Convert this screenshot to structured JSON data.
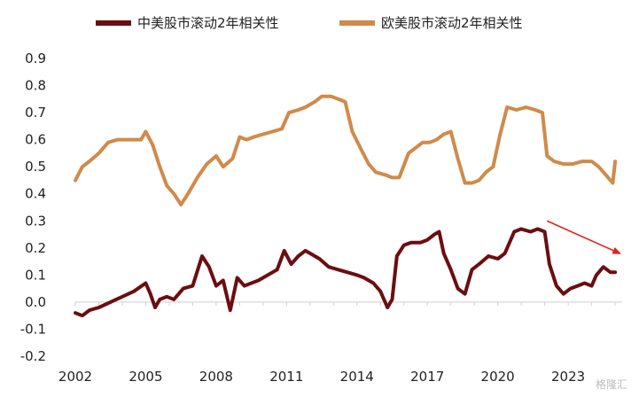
{
  "chart_data": {
    "type": "line",
    "xlim": [
      2002,
      2025.3
    ],
    "ylim": [
      -0.2,
      0.9
    ],
    "yticks": [
      0.9,
      0.8,
      0.7,
      0.6,
      0.5,
      0.4,
      0.3,
      0.2,
      0.1,
      0.0,
      -0.1,
      -0.2
    ],
    "ytick_labels": [
      "0.9",
      "0.8",
      "0.7",
      "0.6",
      "0.5",
      "0.4",
      "0.3",
      "0.2",
      "0.1",
      "0.0",
      "-0.1",
      "-0.2"
    ],
    "xticks": [
      "2002",
      "2005",
      "2008",
      "2011",
      "2014",
      "2017",
      "2020",
      "2023"
    ],
    "legend_position": "top",
    "grid": false,
    "series": [
      {
        "name": "中美股市滚动2年相关性",
        "color": "#6b0e10",
        "x": [
          2002.0,
          2002.3,
          2002.6,
          2003.0,
          2003.5,
          2004.0,
          2004.5,
          2005.0,
          2005.2,
          2005.4,
          2005.6,
          2005.9,
          2006.2,
          2006.6,
          2007.0,
          2007.4,
          2007.7,
          2008.0,
          2008.3,
          2008.6,
          2008.9,
          2009.2,
          2009.5,
          2009.8,
          2010.2,
          2010.6,
          2010.9,
          2011.2,
          2011.5,
          2011.8,
          2012.0,
          2012.4,
          2012.8,
          2013.2,
          2013.6,
          2014.0,
          2014.3,
          2014.7,
          2015.0,
          2015.3,
          2015.5,
          2015.7,
          2016.0,
          2016.3,
          2016.7,
          2017.0,
          2017.3,
          2017.5,
          2017.7,
          2018.0,
          2018.3,
          2018.6,
          2018.9,
          2019.2,
          2019.6,
          2020.0,
          2020.3,
          2020.7,
          2021.0,
          2021.4,
          2021.7,
          2022.0,
          2022.2,
          2022.5,
          2022.8,
          2023.1,
          2023.4,
          2023.7,
          2024.0,
          2024.2,
          2024.5,
          2024.8,
          2025.0
        ],
        "values": [
          -0.04,
          -0.05,
          -0.03,
          -0.02,
          0.0,
          0.02,
          0.04,
          0.07,
          0.03,
          -0.02,
          0.01,
          0.02,
          0.01,
          0.05,
          0.06,
          0.17,
          0.13,
          0.06,
          0.08,
          -0.03,
          0.09,
          0.06,
          0.07,
          0.08,
          0.1,
          0.12,
          0.19,
          0.14,
          0.17,
          0.19,
          0.18,
          0.16,
          0.13,
          0.12,
          0.11,
          0.1,
          0.09,
          0.07,
          0.04,
          -0.02,
          0.01,
          0.17,
          0.21,
          0.22,
          0.22,
          0.23,
          0.25,
          0.26,
          0.18,
          0.12,
          0.05,
          0.03,
          0.12,
          0.14,
          0.17,
          0.16,
          0.18,
          0.26,
          0.27,
          0.26,
          0.27,
          0.26,
          0.14,
          0.06,
          0.03,
          0.05,
          0.06,
          0.07,
          0.06,
          0.1,
          0.13,
          0.11,
          0.11
        ]
      },
      {
        "name": "欧美股市滚动2年相关性",
        "color": "#d08a4a",
        "x": [
          2002.0,
          2002.3,
          2002.6,
          2003.0,
          2003.4,
          2003.8,
          2004.3,
          2004.8,
          2005.0,
          2005.3,
          2005.6,
          2005.9,
          2006.2,
          2006.5,
          2006.8,
          2007.2,
          2007.6,
          2008.0,
          2008.3,
          2008.7,
          2009.0,
          2009.3,
          2009.6,
          2010.0,
          2010.4,
          2010.8,
          2011.1,
          2011.5,
          2011.8,
          2012.2,
          2012.5,
          2012.9,
          2013.2,
          2013.5,
          2013.8,
          2014.2,
          2014.5,
          2014.8,
          2015.2,
          2015.5,
          2015.8,
          2016.2,
          2016.5,
          2016.8,
          2017.1,
          2017.4,
          2017.7,
          2018.0,
          2018.3,
          2018.6,
          2018.9,
          2019.2,
          2019.5,
          2019.8,
          2020.1,
          2020.4,
          2020.8,
          2021.2,
          2021.6,
          2021.9,
          2022.1,
          2022.4,
          2022.8,
          2023.2,
          2023.6,
          2024.0,
          2024.3,
          2024.6,
          2024.9,
          2025.0
        ],
        "values": [
          0.45,
          0.5,
          0.52,
          0.55,
          0.59,
          0.6,
          0.6,
          0.6,
          0.63,
          0.58,
          0.5,
          0.43,
          0.4,
          0.36,
          0.4,
          0.46,
          0.51,
          0.54,
          0.5,
          0.53,
          0.61,
          0.6,
          0.61,
          0.62,
          0.63,
          0.64,
          0.7,
          0.71,
          0.72,
          0.74,
          0.76,
          0.76,
          0.75,
          0.74,
          0.63,
          0.56,
          0.51,
          0.48,
          0.47,
          0.46,
          0.46,
          0.55,
          0.57,
          0.59,
          0.59,
          0.6,
          0.62,
          0.63,
          0.53,
          0.44,
          0.44,
          0.45,
          0.48,
          0.5,
          0.62,
          0.72,
          0.71,
          0.72,
          0.71,
          0.7,
          0.54,
          0.52,
          0.51,
          0.51,
          0.52,
          0.52,
          0.5,
          0.47,
          0.44,
          0.52
        ]
      }
    ],
    "annotations": [
      {
        "type": "arrow",
        "color": "#e0201c",
        "from": [
          2022.1,
          0.3
        ],
        "to": [
          2025.2,
          0.18
        ]
      }
    ]
  },
  "watermark": "格隆汇"
}
